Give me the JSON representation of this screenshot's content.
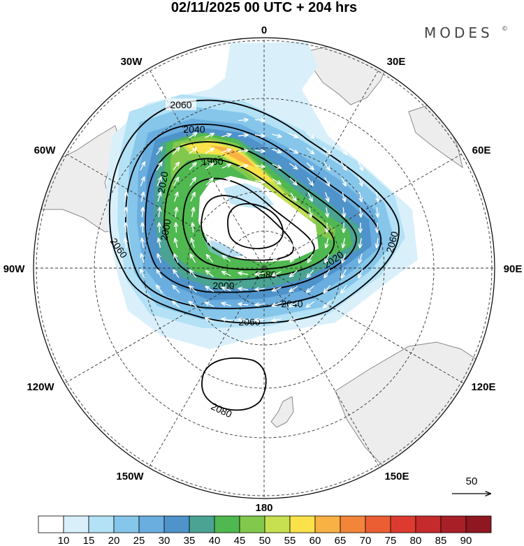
{
  "header": {
    "title": "02/11/2025  00 UTC  + 204 hrs",
    "brand": "MODES",
    "brand_mark": "©"
  },
  "map": {
    "projection": "south-polar-stereographic",
    "longitude_labels": {
      "top": "0",
      "top_right": "30E",
      "upper_right": "60E",
      "right": "90E",
      "lower_right": "120E",
      "bottom_right": "150E",
      "bottom": "180",
      "bottom_left": "150W",
      "lower_left": "120W",
      "left": "90W",
      "upper_left": "60W",
      "top_left": "30W"
    },
    "contour_labels": {
      "c2060_top": "2060",
      "c2040_top": "2040",
      "c1960": "1960",
      "c2020_left": "2020",
      "c2000_left": "2000",
      "c2060_left": "2060",
      "c2000_bottom": "2000",
      "c1980_bottom": "1980",
      "c2020_right": "2020",
      "c2060_right": "2060",
      "c2040_bottom": "2040",
      "c2060_bottom": "2060",
      "c2080": "2080"
    },
    "wind_reference": "50",
    "colors": {
      "land": "#ededed",
      "coast": "#888888",
      "grid": "#333333",
      "contour": "#000000",
      "arrow": "#ffffff"
    }
  },
  "colorbar": {
    "ticks": [
      "10",
      "15",
      "20",
      "25",
      "30",
      "35",
      "40",
      "45",
      "50",
      "55",
      "60",
      "65",
      "70",
      "75",
      "80",
      "85",
      "90"
    ],
    "colors": [
      "#ffffff",
      "#d9f0fb",
      "#b3e1f5",
      "#86c6ea",
      "#6aaee0",
      "#4f93cb",
      "#4aa393",
      "#4fb850",
      "#82c84c",
      "#c6e050",
      "#fbe24a",
      "#f8b143",
      "#f2853a",
      "#eb5e33",
      "#dd3b2f",
      "#c52a2c",
      "#a91f28",
      "#8e1721"
    ]
  }
}
